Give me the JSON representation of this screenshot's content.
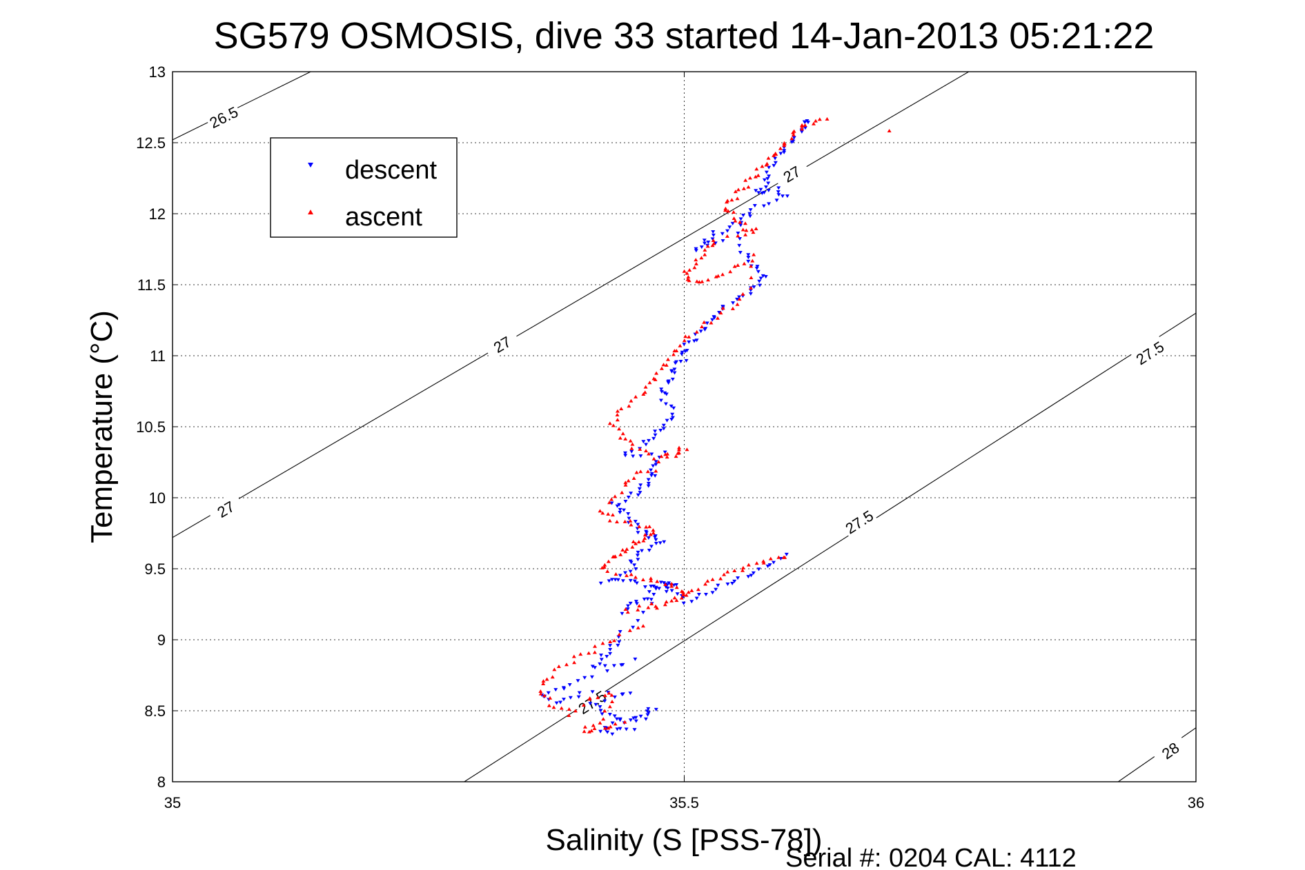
{
  "chart_data": {
    "type": "scatter",
    "title": "SG579 OSMOSIS, dive 33 started 14-Jan-2013 05:21:22",
    "xlabel": "Salinity (S [PSS-78])",
    "ylabel": "Temperature (°C)",
    "xlim": [
      35,
      36
    ],
    "ylim": [
      8,
      13
    ],
    "xticks": [
      "35",
      "35.5",
      "36"
    ],
    "yticks": [
      "8",
      "8.5",
      "9",
      "9.5",
      "10",
      "10.5",
      "11",
      "11.5",
      "12",
      "12.5",
      "13"
    ],
    "grid": true,
    "legend_position": "top-left",
    "footer": "Serial #: 0204  CAL: 4112",
    "series": [
      {
        "name": "descent",
        "color": "#0000ff",
        "marker": "triangle-down",
        "x": [
          35.62,
          35.62,
          35.61,
          35.6,
          35.59,
          35.58,
          35.58,
          35.57,
          35.59,
          35.6,
          35.57,
          35.56,
          35.55,
          35.53,
          35.52,
          35.51,
          35.55,
          35.56,
          35.57,
          35.58,
          35.57,
          35.56,
          35.54,
          35.53,
          35.52,
          35.51,
          35.5,
          35.5,
          35.49,
          35.49,
          35.48,
          35.48,
          35.49,
          35.48,
          35.47,
          35.46,
          35.44,
          35.48,
          35.47,
          35.47,
          35.46,
          35.45,
          35.43,
          35.44,
          35.45,
          35.46,
          35.47,
          35.48,
          35.46,
          35.45,
          35.45,
          35.42,
          35.44,
          35.46,
          35.48,
          35.49,
          35.46,
          35.44,
          35.47,
          35.48,
          35.49,
          35.5,
          35.52,
          35.54,
          35.56,
          35.58,
          35.6,
          35.47,
          35.44,
          35.43,
          35.42,
          35.41,
          35.45,
          35.4,
          35.38,
          35.36,
          35.38,
          35.4,
          35.45,
          35.41,
          35.42,
          35.44,
          35.46,
          35.47,
          35.45,
          35.43,
          35.42,
          35.44
        ],
        "y": [
          12.67,
          12.62,
          12.55,
          12.48,
          12.4,
          12.3,
          12.22,
          12.15,
          12.18,
          12.12,
          12.05,
          11.98,
          11.92,
          11.86,
          11.8,
          11.74,
          11.85,
          11.7,
          11.62,
          11.55,
          11.48,
          11.42,
          11.35,
          11.28,
          11.2,
          11.12,
          11.05,
          10.98,
          10.92,
          10.85,
          10.78,
          10.7,
          10.6,
          10.52,
          10.45,
          10.38,
          10.3,
          10.32,
          10.22,
          10.15,
          10.08,
          10.02,
          9.95,
          9.9,
          9.82,
          9.75,
          9.72,
          9.68,
          9.62,
          9.55,
          9.48,
          9.4,
          9.42,
          9.38,
          9.35,
          9.4,
          9.3,
          9.2,
          9.3,
          9.42,
          9.36,
          9.27,
          9.33,
          9.4,
          9.45,
          9.52,
          9.6,
          9.25,
          9.05,
          8.95,
          8.88,
          8.8,
          8.85,
          8.72,
          8.65,
          8.6,
          8.55,
          8.62,
          8.62,
          8.55,
          8.48,
          8.42,
          8.45,
          8.52,
          8.38,
          8.35,
          8.37,
          8.45
        ]
      },
      {
        "name": "ascent",
        "color": "#ff0000",
        "marker": "triangle-up",
        "x": [
          35.64,
          35.62,
          35.61,
          35.6,
          35.59,
          35.58,
          35.57,
          35.56,
          35.55,
          35.54,
          35.55,
          35.56,
          35.57,
          35.53,
          35.52,
          35.51,
          35.5,
          35.51,
          35.53,
          35.55,
          35.57,
          35.56,
          35.54,
          35.52,
          35.5,
          35.49,
          35.48,
          35.47,
          35.46,
          35.44,
          35.43,
          35.44,
          35.45,
          35.47,
          35.49,
          35.5,
          35.47,
          35.45,
          35.44,
          35.42,
          35.43,
          35.45,
          35.47,
          35.46,
          35.45,
          35.44,
          35.43,
          35.42,
          35.45,
          35.47,
          35.49,
          35.5,
          35.49,
          35.47,
          35.44,
          35.5,
          35.52,
          35.54,
          35.56,
          35.58,
          35.6,
          35.46,
          35.43,
          35.41,
          35.39,
          35.37,
          35.36,
          35.37,
          35.39,
          35.41,
          35.43,
          35.42,
          35.4,
          35.42,
          35.44,
          35.7
        ],
        "y": [
          12.66,
          12.62,
          12.58,
          12.5,
          12.43,
          12.36,
          12.28,
          12.2,
          12.12,
          12.05,
          11.98,
          11.9,
          11.88,
          11.82,
          11.75,
          11.65,
          11.58,
          11.52,
          11.55,
          11.62,
          11.7,
          11.42,
          11.32,
          11.22,
          11.12,
          11.02,
          10.92,
          10.82,
          10.72,
          10.62,
          10.52,
          10.42,
          10.35,
          10.28,
          10.3,
          10.35,
          10.2,
          10.15,
          10.05,
          9.92,
          9.85,
          9.82,
          9.78,
          9.72,
          9.68,
          9.62,
          9.58,
          9.5,
          9.45,
          9.42,
          9.38,
          9.32,
          9.28,
          9.22,
          9.2,
          9.3,
          9.38,
          9.45,
          9.5,
          9.55,
          9.58,
          9.1,
          9.0,
          8.92,
          8.85,
          8.75,
          8.65,
          8.55,
          8.48,
          8.6,
          8.62,
          8.45,
          8.36,
          8.38,
          8.42,
          12.58
        ]
      }
    ],
    "contours": [
      {
        "label": "26.5",
        "points": [
          [
            35.0,
            12.52
          ],
          [
            35.135,
            13.0
          ]
        ]
      },
      {
        "label": "27",
        "points": [
          [
            35.0,
            9.72
          ],
          [
            35.778,
            13.0
          ]
        ]
      },
      {
        "label": "27.5",
        "points": [
          [
            35.285,
            8.0
          ],
          [
            36.0,
            11.3
          ]
        ]
      },
      {
        "label": "28",
        "points": [
          [
            35.924,
            8.0
          ],
          [
            36.0,
            8.38
          ]
        ]
      }
    ],
    "contour_labels": [
      {
        "text": "26.5",
        "x": 35.05,
        "y": 12.68
      },
      {
        "text": "27",
        "x": 35.322,
        "y": 11.08
      },
      {
        "text": "27",
        "x": 35.052,
        "y": 9.92
      },
      {
        "text": "27",
        "x": 35.605,
        "y": 12.28
      },
      {
        "text": "27.5",
        "x": 35.955,
        "y": 11.02
      },
      {
        "text": "27.5",
        "x": 35.671,
        "y": 9.83
      },
      {
        "text": "27.5",
        "x": 35.41,
        "y": 8.56
      },
      {
        "text": "28",
        "x": 35.975,
        "y": 8.22
      }
    ]
  }
}
